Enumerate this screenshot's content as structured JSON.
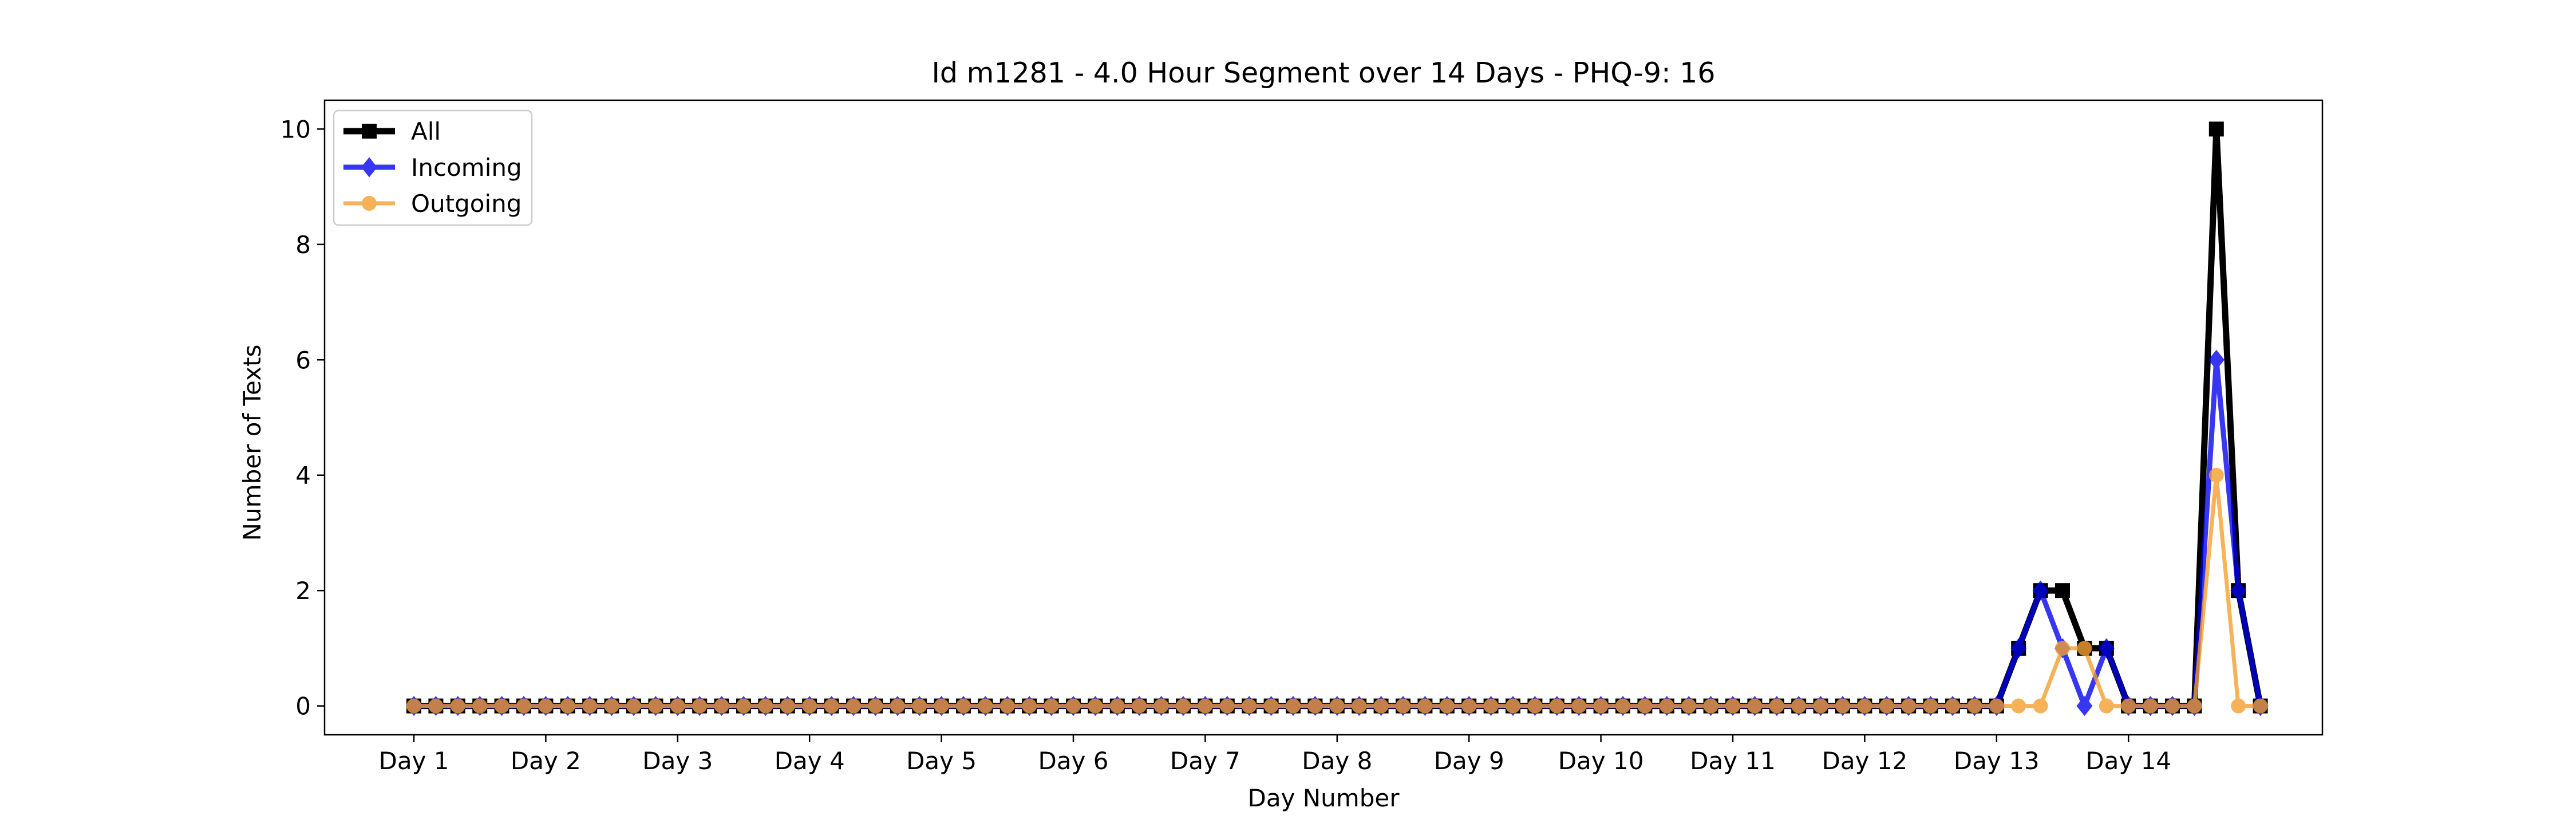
{
  "chart_data": {
    "type": "line",
    "title": "Id m1281 - 4.0 Hour Segment over 14 Days - PHQ-9: 16",
    "xlabel": "Day Number",
    "ylabel": "Number of Texts",
    "ylim": [
      -0.5,
      10.5
    ],
    "yticks": [
      0,
      2,
      4,
      6,
      8,
      10
    ],
    "xtick_labels": [
      "Day 1",
      "Day 2",
      "Day 3",
      "Day 4",
      "Day 5",
      "Day 6",
      "Day 7",
      "Day 8",
      "Day 9",
      "Day 10",
      "Day 11",
      "Day 12",
      "Day 13",
      "Day 14"
    ],
    "points_per_day": 6,
    "legend_position": "upper-left",
    "series": [
      {
        "name": "All",
        "color": "#000000",
        "marker": "square",
        "values": [
          0,
          0,
          0,
          0,
          0,
          0,
          0,
          0,
          0,
          0,
          0,
          0,
          0,
          0,
          0,
          0,
          0,
          0,
          0,
          0,
          0,
          0,
          0,
          0,
          0,
          0,
          0,
          0,
          0,
          0,
          0,
          0,
          0,
          0,
          0,
          0,
          0,
          0,
          0,
          0,
          0,
          0,
          0,
          0,
          0,
          0,
          0,
          0,
          0,
          0,
          0,
          0,
          0,
          0,
          0,
          0,
          0,
          0,
          0,
          0,
          0,
          0,
          0,
          0,
          0,
          0,
          0,
          0,
          0,
          0,
          0,
          0,
          0,
          1,
          2,
          2,
          1,
          1,
          0,
          0,
          0,
          0,
          10,
          2,
          0
        ]
      },
      {
        "name": "Incoming",
        "color": "#0000ee",
        "marker": "diamond",
        "values": [
          0,
          0,
          0,
          0,
          0,
          0,
          0,
          0,
          0,
          0,
          0,
          0,
          0,
          0,
          0,
          0,
          0,
          0,
          0,
          0,
          0,
          0,
          0,
          0,
          0,
          0,
          0,
          0,
          0,
          0,
          0,
          0,
          0,
          0,
          0,
          0,
          0,
          0,
          0,
          0,
          0,
          0,
          0,
          0,
          0,
          0,
          0,
          0,
          0,
          0,
          0,
          0,
          0,
          0,
          0,
          0,
          0,
          0,
          0,
          0,
          0,
          0,
          0,
          0,
          0,
          0,
          0,
          0,
          0,
          0,
          0,
          0,
          0,
          1,
          2,
          1,
          0,
          1,
          0,
          0,
          0,
          0,
          6,
          2,
          0
        ]
      },
      {
        "name": "Outgoing",
        "color": "#f4a030",
        "marker": "circle",
        "values": [
          0,
          0,
          0,
          0,
          0,
          0,
          0,
          0,
          0,
          0,
          0,
          0,
          0,
          0,
          0,
          0,
          0,
          0,
          0,
          0,
          0,
          0,
          0,
          0,
          0,
          0,
          0,
          0,
          0,
          0,
          0,
          0,
          0,
          0,
          0,
          0,
          0,
          0,
          0,
          0,
          0,
          0,
          0,
          0,
          0,
          0,
          0,
          0,
          0,
          0,
          0,
          0,
          0,
          0,
          0,
          0,
          0,
          0,
          0,
          0,
          0,
          0,
          0,
          0,
          0,
          0,
          0,
          0,
          0,
          0,
          0,
          0,
          0,
          0,
          0,
          1,
          1,
          0,
          0,
          0,
          0,
          0,
          4,
          0,
          0
        ]
      }
    ]
  }
}
